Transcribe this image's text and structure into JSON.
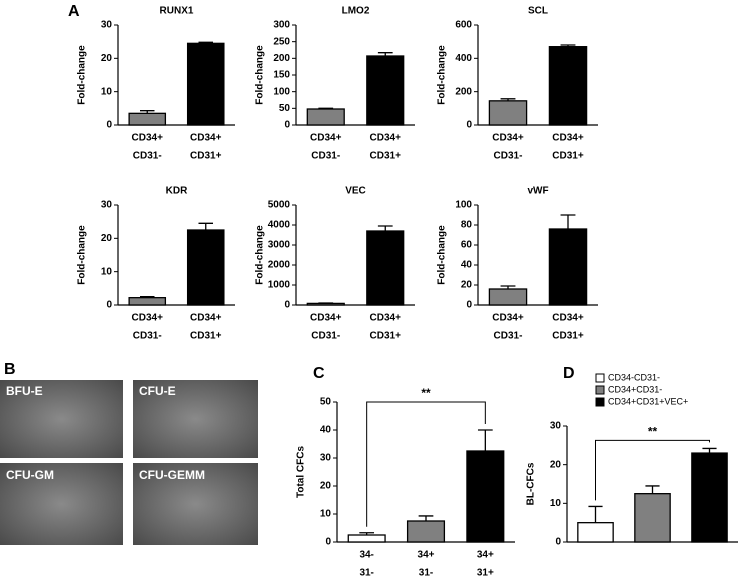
{
  "panel_labels": [
    "A",
    "B",
    "C",
    "D"
  ],
  "images": [
    "BFU-E",
    "CFU-E",
    "CFU-GM",
    "CFU-GEMM"
  ],
  "chart_data": [
    {
      "type": "bar",
      "title": "RUNX1",
      "ylabel": "Fold-change",
      "categories": [
        [
          "CD34+",
          "CD31-"
        ],
        [
          "CD34+",
          "CD31+"
        ]
      ],
      "values": [
        3.5,
        24.5
      ],
      "errors": [
        0.8,
        0.3
      ],
      "colors": [
        "#808080",
        "#000000"
      ],
      "ylim": [
        0,
        30
      ],
      "yticks": [
        0,
        10,
        20,
        30
      ]
    },
    {
      "type": "bar",
      "title": "LMO2",
      "ylabel": "Fold-change",
      "categories": [
        [
          "CD34+",
          "CD31-"
        ],
        [
          "CD34+",
          "CD31+"
        ]
      ],
      "values": [
        48,
        207
      ],
      "errors": [
        2,
        10
      ],
      "colors": [
        "#808080",
        "#000000"
      ],
      "ylim": [
        0,
        300
      ],
      "yticks": [
        0,
        50,
        100,
        150,
        200,
        250,
        300
      ]
    },
    {
      "type": "bar",
      "title": "SCL",
      "ylabel": "Fold-change",
      "categories": [
        [
          "CD34+",
          "CD31-"
        ],
        [
          "CD34+",
          "CD31+"
        ]
      ],
      "values": [
        145,
        470
      ],
      "errors": [
        12,
        10
      ],
      "colors": [
        "#808080",
        "#000000"
      ],
      "ylim": [
        0,
        600
      ],
      "yticks": [
        0,
        200,
        400,
        600
      ]
    },
    {
      "type": "bar",
      "title": "KDR",
      "ylabel": "Fold-change",
      "categories": [
        [
          "CD34+",
          "CD31-"
        ],
        [
          "CD34+",
          "CD31+"
        ]
      ],
      "values": [
        2.2,
        22.5
      ],
      "errors": [
        0.3,
        2
      ],
      "colors": [
        "#808080",
        "#000000"
      ],
      "ylim": [
        0,
        30
      ],
      "yticks": [
        0,
        10,
        20,
        30
      ]
    },
    {
      "type": "bar",
      "title": "VEC",
      "ylabel": "Fold-change",
      "categories": [
        [
          "CD34+",
          "CD31-"
        ],
        [
          "CD34+",
          "CD31+"
        ]
      ],
      "values": [
        80,
        3700
      ],
      "errors": [
        20,
        250
      ],
      "colors": [
        "#808080",
        "#000000"
      ],
      "ylim": [
        0,
        5000
      ],
      "yticks": [
        0,
        1000,
        2000,
        3000,
        4000,
        5000
      ]
    },
    {
      "type": "bar",
      "title": "vWF",
      "ylabel": "Fold-change",
      "categories": [
        [
          "CD34+",
          "CD31-"
        ],
        [
          "CD34+",
          "CD31+"
        ]
      ],
      "values": [
        16,
        76
      ],
      "errors": [
        3,
        14
      ],
      "colors": [
        "#808080",
        "#000000"
      ],
      "ylim": [
        0,
        100
      ],
      "yticks": [
        0,
        20,
        40,
        60,
        80,
        100
      ]
    },
    {
      "type": "bar",
      "ylabel": "Total CFCs",
      "categories": [
        [
          "34-",
          "31-"
        ],
        [
          "34+",
          "31-"
        ],
        [
          "34+",
          "31+"
        ]
      ],
      "values": [
        2.5,
        7.5,
        32.5
      ],
      "errors": [
        0.8,
        1.8,
        7.5
      ],
      "colors": [
        "#ffffff",
        "#808080",
        "#000000"
      ],
      "ylim": [
        0,
        50
      ],
      "yticks": [
        0,
        10,
        20,
        30,
        40,
        50
      ],
      "annotations": [
        "**"
      ]
    },
    {
      "type": "bar",
      "ylabel": "BL-CFCs",
      "legend_labels": [
        "CD34-CD31-",
        "CD34+CD31-",
        "CD34+CD31+VEC+"
      ],
      "values": [
        5,
        12.5,
        23
      ],
      "errors": [
        4.2,
        2,
        1.2
      ],
      "colors": [
        "#ffffff",
        "#808080",
        "#000000"
      ],
      "ylim": [
        0,
        30
      ],
      "yticks": [
        0,
        10,
        20,
        30
      ],
      "annotations": [
        "**"
      ]
    }
  ]
}
